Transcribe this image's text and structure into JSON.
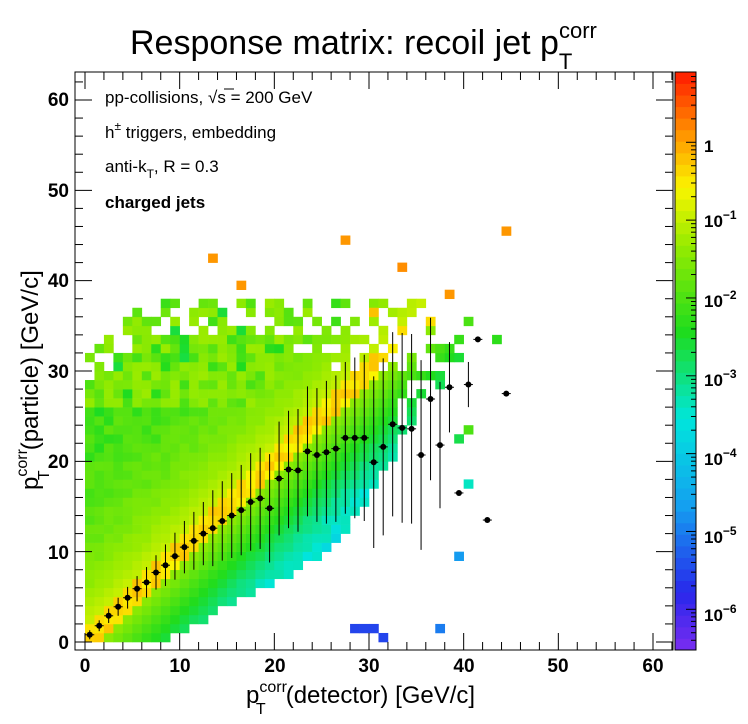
{
  "colors": {
    "frame": "#000000",
    "marker": "#000000",
    "palette_low": "#7a2cf0",
    "palette_high": "#ff1a00"
  },
  "chart_data": {
    "type": "heatmap",
    "title": {
      "main": "Response matrix: recoil jet p",
      "sup": "corr",
      "sub": "T"
    },
    "xlabel": {
      "pre": "p",
      "sup": "corr",
      "sub": "T",
      "post": "(detector) [GeV/c]"
    },
    "ylabel": {
      "pre": "p",
      "sup": "corr",
      "sub": "T",
      "post": "(particle) [GeV/c]"
    },
    "xlim": [
      -0.5,
      63
    ],
    "ylim": [
      -0.5,
      63
    ],
    "x_ticks": [
      "0",
      "10",
      "20",
      "30",
      "40",
      "50",
      "60"
    ],
    "y_ticks": [
      "0",
      "10",
      "20",
      "30",
      "40",
      "50",
      "60"
    ],
    "colorbar": {
      "scale": "log",
      "range": [
        3e-07,
        8
      ],
      "labels": [
        {
          "base": "1",
          "exp": ""
        },
        {
          "base": "10",
          "exp": "−1"
        },
        {
          "base": "10",
          "exp": "−2"
        },
        {
          "base": "10",
          "exp": "−3"
        },
        {
          "base": "10",
          "exp": "−4"
        },
        {
          "base": "10",
          "exp": "−5"
        },
        {
          "base": "10",
          "exp": "−6"
        }
      ]
    },
    "annotations": {
      "line1": {
        "pre": "pp-collisions, ",
        "rad": "s",
        "post": " = 200 GeV"
      },
      "line2": {
        "pre": "h",
        "sup": "±",
        "post": " triggers, embedding"
      },
      "line3": {
        "pre": "anti-k",
        "sub": "T",
        "post": ", R = 0.3"
      },
      "line4": "charged jets"
    },
    "cell_size": [
      1,
      1
    ],
    "isolated_cells": [
      {
        "x": 13,
        "y": 42,
        "v": 1.2
      },
      {
        "x": 16,
        "y": 39,
        "v": 1.2
      },
      {
        "x": 27,
        "y": 44,
        "v": 1.2
      },
      {
        "x": 44,
        "y": 45,
        "v": 1.2
      },
      {
        "x": 33,
        "y": 41,
        "v": 1.4
      },
      {
        "x": 38,
        "y": 38,
        "v": 1.2
      },
      {
        "x": 30,
        "y": 36,
        "v": 0.6
      },
      {
        "x": 37,
        "y": 1,
        "v": 1e-05
      },
      {
        "x": 31,
        "y": 0,
        "v": 3e-06
      },
      {
        "x": 28,
        "y": 1,
        "v": 3e-06
      },
      {
        "x": 29,
        "y": 1,
        "v": 3e-06
      },
      {
        "x": 30,
        "y": 1,
        "v": 3e-06
      },
      {
        "x": 39,
        "y": 9,
        "v": 2e-05
      },
      {
        "x": 43,
        "y": 33,
        "v": 0.005
      },
      {
        "x": 39,
        "y": 22,
        "v": 0.002
      },
      {
        "x": 40,
        "y": 17,
        "v": 0.0004
      },
      {
        "x": 40,
        "y": 23,
        "v": 0.01
      }
    ],
    "profile": {
      "x": [
        0.5,
        1.5,
        2.5,
        3.5,
        4.5,
        5.5,
        6.5,
        7.5,
        8.5,
        9.5,
        10.5,
        11.5,
        12.5,
        13.5,
        14.5,
        15.5,
        16.5,
        17.5,
        18.5,
        19.5,
        20.5,
        21.5,
        22.5,
        23.5,
        24.5,
        25.5,
        26.5,
        27.5,
        28.5,
        29.5,
        30.5,
        31.5,
        32.5,
        33.5,
        34.5,
        35.5,
        36.5,
        37.5,
        38.5,
        39.5,
        40.5,
        41.5,
        42.5,
        44.5
      ],
      "y": [
        0.8,
        1.8,
        2.9,
        3.9,
        4.9,
        5.9,
        6.6,
        7.7,
        8.5,
        9.5,
        10.5,
        11.2,
        12.0,
        12.6,
        13.4,
        14.0,
        14.6,
        15.5,
        15.9,
        14.8,
        18.1,
        19.1,
        19.0,
        21.1,
        20.7,
        21.0,
        21.4,
        22.6,
        22.6,
        22.6,
        19.9,
        21.6,
        24.1,
        23.7,
        23.6,
        20.7,
        26.9,
        21.8,
        28.2,
        16.5,
        28.5,
        33.5,
        13.5,
        27.5
      ],
      "err": [
        0.5,
        0.6,
        0.8,
        1.0,
        1.2,
        1.4,
        1.7,
        1.9,
        2.3,
        2.6,
        2.9,
        3.2,
        3.5,
        4.2,
        4.4,
        4.7,
        5.0,
        5.4,
        5.6,
        6.0,
        6.3,
        6.5,
        6.8,
        7.2,
        7.4,
        7.9,
        8.1,
        8.4,
        8.9,
        9.2,
        9.5,
        9.8,
        10.2,
        10.5,
        10.5,
        10.5,
        9.0,
        7.0,
        5.0,
        0.0,
        2.5,
        0.0,
        0.0,
        0.0
      ]
    }
  }
}
